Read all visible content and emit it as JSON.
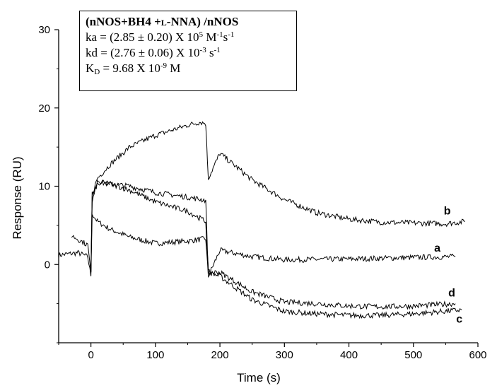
{
  "chart_data": {
    "type": "line",
    "xlabel": "Time (s)",
    "ylabel": "Response (RU)",
    "xlim": [
      -50,
      600
    ],
    "ylim": [
      -10,
      30
    ],
    "x_ticks": [
      0,
      100,
      200,
      300,
      400,
      500,
      600
    ],
    "y_ticks": [
      0,
      10,
      20,
      30
    ],
    "legend": {
      "title": "(nNOS+BH4 +L-NNA) /nNOS",
      "lines": [
        "ka = (2.85 ± 0.20) X 10^5 M^-1s^-1",
        "kd = (2.76 ± 0.06) X 10^-3 s^-1",
        "K_D = 9.68 X 10^-9 M"
      ]
    },
    "series": [
      {
        "name": "a",
        "x": [
          -50,
          -20,
          -5,
          0,
          2,
          10,
          30,
          60,
          100,
          150,
          178,
          182,
          200,
          250,
          300,
          400,
          500,
          565
        ],
        "y": [
          1.2,
          1.5,
          1.0,
          -1.5,
          6.5,
          5.5,
          4.5,
          3.5,
          2.7,
          3.0,
          3.3,
          -1.5,
          1.8,
          1.0,
          0.6,
          0.7,
          0.9,
          1.0
        ]
      },
      {
        "name": "b",
        "x": [
          0,
          2,
          10,
          30,
          60,
          100,
          150,
          170,
          178,
          182,
          200,
          250,
          300,
          350,
          400,
          450,
          500,
          550,
          580
        ],
        "y": [
          -1,
          9,
          11,
          12.8,
          15,
          16.5,
          17.8,
          18.2,
          18.0,
          11,
          14.2,
          10.8,
          8.3,
          6.6,
          5.8,
          5.4,
          5.3,
          5.2,
          5.5
        ]
      },
      {
        "name": "c",
        "x": [
          -30,
          -5,
          0,
          2,
          10,
          30,
          60,
          100,
          150,
          178,
          182,
          200,
          250,
          300,
          350,
          400,
          450,
          500,
          575
        ],
        "y": [
          3.7,
          2.5,
          -1,
          9,
          10.5,
          10.3,
          10.0,
          9.2,
          8.6,
          8.2,
          -1,
          -1.5,
          -4.5,
          -6.0,
          -6.3,
          -6.5,
          -6.5,
          -6.3,
          -5.8
        ]
      },
      {
        "name": "d",
        "x": [
          0,
          2,
          10,
          30,
          60,
          100,
          150,
          178,
          182,
          200,
          250,
          300,
          350,
          400,
          450,
          500,
          565
        ],
        "y": [
          -1,
          8,
          10.5,
          10.3,
          9.5,
          8.0,
          6.8,
          5.5,
          -1,
          -1,
          -3.5,
          -4.8,
          -5.0,
          -5.3,
          -5.4,
          -5.3,
          -5.0
        ]
      }
    ]
  }
}
